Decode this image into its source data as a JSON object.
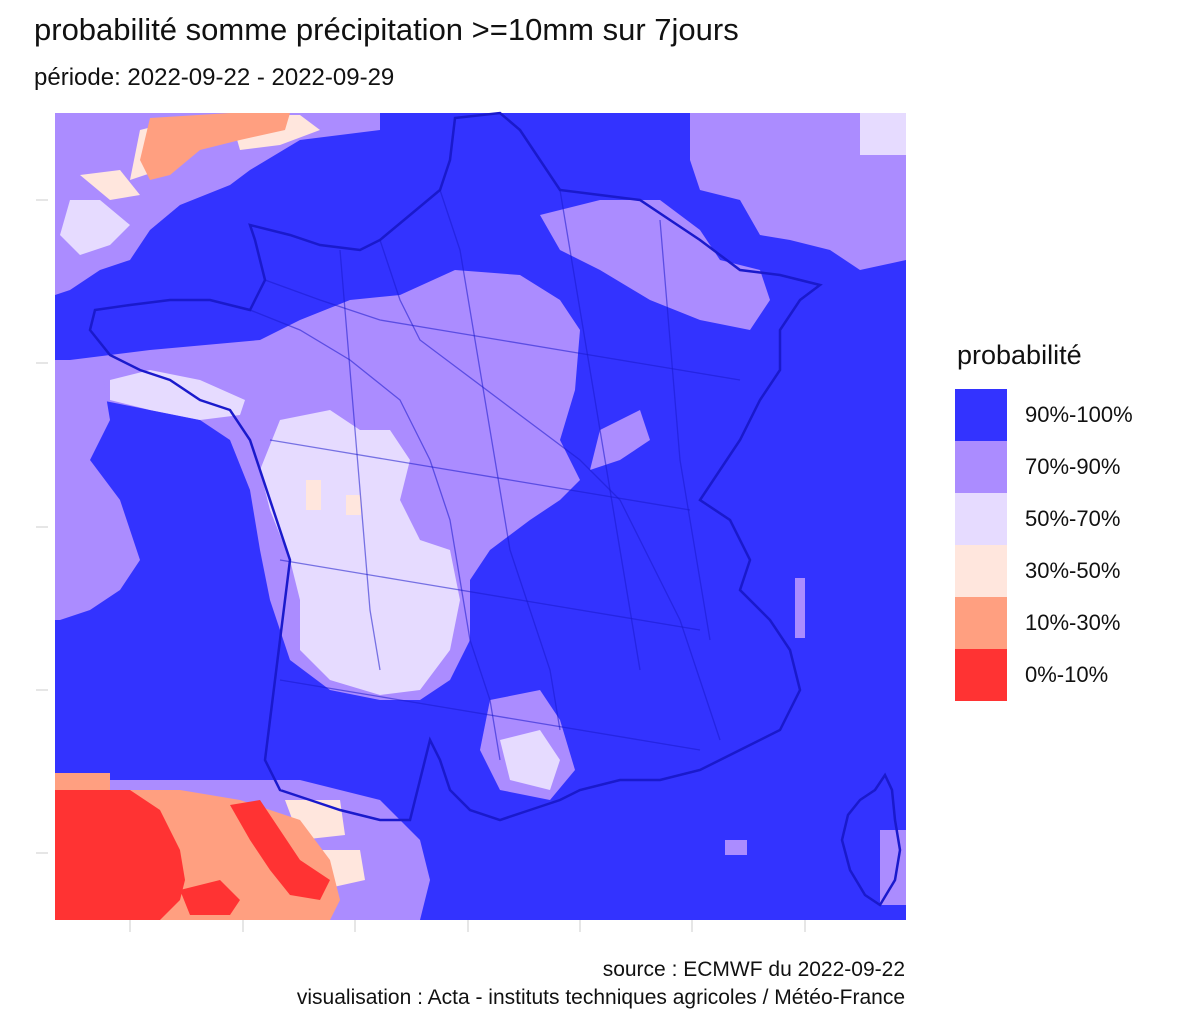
{
  "title": "probabilité somme précipitation >=10mm sur 7jours",
  "subtitle": "période: 2022-09-22 - 2022-09-29",
  "legend": {
    "title": "probabilité",
    "items": [
      {
        "label": "90%-100%",
        "color": "#3333ff"
      },
      {
        "label": "70%-90%",
        "color": "#ab8cff"
      },
      {
        "label": "50%-70%",
        "color": "#e6dbff"
      },
      {
        "label": "30%-50%",
        "color": "#ffe6dd"
      },
      {
        "label": "10%-30%",
        "color": "#ff9f80"
      },
      {
        "label": "0%-10%",
        "color": "#ff3333"
      }
    ]
  },
  "caption": {
    "source": "source : ECMWF du 2022-09-22",
    "visualisation": "visualisation : Acta - instituts techniques agricoles / Météo-France"
  },
  "colors": {
    "background": "#3333ff",
    "border_france": "#1a1acc",
    "border_regions": "#8877cc",
    "panel_grid": "#ebebeb"
  }
}
